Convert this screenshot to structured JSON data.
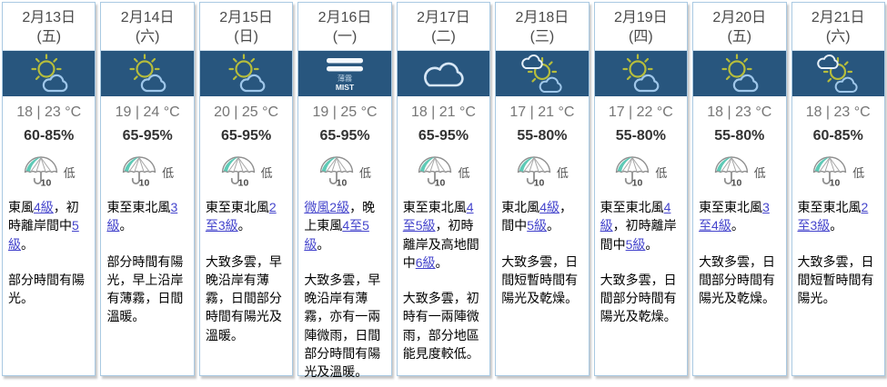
{
  "app": {
    "title": "9-day weather forecast",
    "colors": {
      "icon_band_background": "#28567e",
      "column_border": "#a9c9e2",
      "link_blue": "#4444cc",
      "sun_stroke": "#b6bd3c",
      "cloud_blue_stroke": "#9fc7ea",
      "cloud_white_stroke": "#e7f1fa",
      "psr_teal_fill": "#5ecab6",
      "date_text": "#4a4a4a",
      "temp_text": "#767676",
      "humidity_text": "#333333"
    }
  },
  "psr": {
    "number": "10"
  },
  "mist": {
    "zh": "薄霧",
    "en": "MIST"
  },
  "days": [
    {
      "date": "2月13日",
      "weekday": "(五)",
      "icon": "sunny-periods",
      "temp": "18 | 23 °C",
      "humidity": "60-85%",
      "psr": "低",
      "wind": [
        {
          "t": "東風"
        },
        {
          "t": "4級",
          "link": true
        },
        {
          "t": "，初時離岸間中"
        },
        {
          "t": "5級",
          "link": true
        },
        {
          "t": "。"
        }
      ],
      "desc": "部分時間有陽光。"
    },
    {
      "date": "2月14日",
      "weekday": "(六)",
      "icon": "sunny-periods",
      "temp": "19 | 24 °C",
      "humidity": "65-95%",
      "psr": "低",
      "wind": [
        {
          "t": "東至東北風"
        },
        {
          "t": "3級",
          "link": true
        },
        {
          "t": "。"
        }
      ],
      "desc": "部分時間有陽光，早上沿岸有薄霧，日間溫暖。"
    },
    {
      "date": "2月15日",
      "weekday": "(日)",
      "icon": "sunny-periods",
      "temp": "20 | 25 °C",
      "humidity": "65-95%",
      "psr": "低",
      "wind": [
        {
          "t": "東至東北風"
        },
        {
          "t": "2至3級",
          "link": true
        },
        {
          "t": "。"
        }
      ],
      "desc": "大致多雲，早晚沿岸有薄霧，日間部分時間有陽光及溫暖。"
    },
    {
      "date": "2月16日",
      "weekday": "(一)",
      "icon": "mist",
      "temp": "19 | 25 °C",
      "humidity": "65-95%",
      "psr": "低",
      "wind": [
        {
          "t": "微風2級",
          "link": true
        },
        {
          "t": "，晚上東風"
        },
        {
          "t": "4至5級",
          "link": true
        },
        {
          "t": "。"
        }
      ],
      "desc": "大致多雲，早晚沿岸有薄霧，亦有一兩陣微雨，日間部分時間有陽光及溫暖。"
    },
    {
      "date": "2月17日",
      "weekday": "(二)",
      "icon": "cloudy",
      "temp": "18 | 21 °C",
      "humidity": "65-95%",
      "psr": "低",
      "wind": [
        {
          "t": "東至東北風"
        },
        {
          "t": "4至5級",
          "link": true
        },
        {
          "t": "，初時離岸及高地間中"
        },
        {
          "t": "6級",
          "link": true
        },
        {
          "t": "。"
        }
      ],
      "desc": "大致多雲，初時有一兩陣微雨，部分地區能見度較低。"
    },
    {
      "date": "2月18日",
      "weekday": "(三)",
      "icon": "sunny-intervals",
      "temp": "17 | 21 °C",
      "humidity": "55-80%",
      "psr": "低",
      "wind": [
        {
          "t": "東北風"
        },
        {
          "t": "4級",
          "link": true
        },
        {
          "t": "，間中"
        },
        {
          "t": "5級",
          "link": true
        },
        {
          "t": "。"
        }
      ],
      "desc": "大致多雲，日間短暫時間有陽光及乾燥。"
    },
    {
      "date": "2月19日",
      "weekday": "(四)",
      "icon": "sunny-periods",
      "temp": "17 | 22 °C",
      "humidity": "55-80%",
      "psr": "低",
      "wind": [
        {
          "t": "東至東北風"
        },
        {
          "t": "4級",
          "link": true
        },
        {
          "t": "，初時離岸間中"
        },
        {
          "t": "5級",
          "link": true
        },
        {
          "t": "。"
        }
      ],
      "desc": "大致多雲，日間部分時間有陽光及乾燥。"
    },
    {
      "date": "2月20日",
      "weekday": "(五)",
      "icon": "sunny-periods",
      "temp": "18 | 23 °C",
      "humidity": "55-80%",
      "psr": "低",
      "wind": [
        {
          "t": "東至東北風"
        },
        {
          "t": "3至4級",
          "link": true
        },
        {
          "t": "。"
        }
      ],
      "desc": "大致多雲，日間部分時間有陽光及乾燥。"
    },
    {
      "date": "2月21日",
      "weekday": "(六)",
      "icon": "sunny-intervals",
      "temp": "18 | 23 °C",
      "humidity": "60-85%",
      "psr": "低",
      "wind": [
        {
          "t": "東至東北風"
        },
        {
          "t": "2至3級",
          "link": true
        },
        {
          "t": "。"
        }
      ],
      "desc": "大致多雲，日間短暫時間有陽光。"
    }
  ]
}
